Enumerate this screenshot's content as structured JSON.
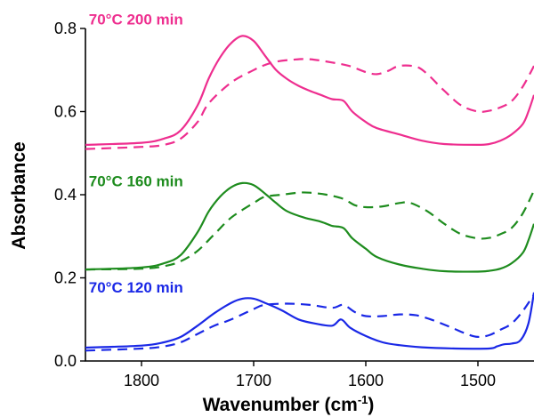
{
  "chart_data": {
    "type": "line",
    "title": "",
    "xlabel": "Wavenumber (cm",
    "xlabel_sup": "-1",
    "xlabel_close": ")",
    "ylabel": "Absorbance",
    "xlim": [
      1850,
      1450
    ],
    "ylim": [
      0.0,
      0.8
    ],
    "x_reversed": true,
    "grid": false,
    "legend": "none",
    "xticks": [
      {
        "value": 1800,
        "label": "1800"
      },
      {
        "value": 1700,
        "label": "1700"
      },
      {
        "value": 1600,
        "label": "1600"
      },
      {
        "value": 1500,
        "label": "1500"
      }
    ],
    "yticks": [
      {
        "value": 0.0,
        "label": "0.0"
      },
      {
        "value": 0.2,
        "label": "0.2"
      },
      {
        "value": 0.4,
        "label": "0.4"
      },
      {
        "value": 0.6,
        "label": "0.6"
      },
      {
        "value": 0.8,
        "label": "0.8"
      }
    ],
    "labels": [
      {
        "text": "70°C 200 min",
        "color": "#ee2e8f",
        "x": 1847,
        "y": 0.81
      },
      {
        "text": "70°C 160 min",
        "color": "#1e8c1e",
        "x": 1847,
        "y": 0.42
      },
      {
        "text": "70°C 120 min",
        "color": "#1a28e6",
        "x": 1847,
        "y": 0.165
      }
    ],
    "series": [
      {
        "color": "#ee2e8f",
        "style": "solid",
        "points": [
          [
            1850,
            0.52
          ],
          [
            1800,
            0.525
          ],
          [
            1780,
            0.535
          ],
          [
            1765,
            0.555
          ],
          [
            1750,
            0.615
          ],
          [
            1740,
            0.68
          ],
          [
            1730,
            0.73
          ],
          [
            1720,
            0.765
          ],
          [
            1710,
            0.782
          ],
          [
            1700,
            0.77
          ],
          [
            1690,
            0.735
          ],
          [
            1680,
            0.7
          ],
          [
            1670,
            0.678
          ],
          [
            1660,
            0.662
          ],
          [
            1650,
            0.65
          ],
          [
            1640,
            0.64
          ],
          [
            1630,
            0.63
          ],
          [
            1620,
            0.626
          ],
          [
            1612,
            0.6
          ],
          [
            1600,
            0.575
          ],
          [
            1590,
            0.56
          ],
          [
            1570,
            0.545
          ],
          [
            1550,
            0.53
          ],
          [
            1530,
            0.522
          ],
          [
            1500,
            0.52
          ],
          [
            1490,
            0.522
          ],
          [
            1480,
            0.53
          ],
          [
            1470,
            0.545
          ],
          [
            1460,
            0.57
          ],
          [
            1455,
            0.6
          ],
          [
            1450,
            0.64
          ]
        ]
      },
      {
        "color": "#ee2e8f",
        "style": "dashed",
        "points": [
          [
            1850,
            0.51
          ],
          [
            1800,
            0.515
          ],
          [
            1780,
            0.52
          ],
          [
            1765,
            0.535
          ],
          [
            1750,
            0.575
          ],
          [
            1740,
            0.62
          ],
          [
            1720,
            0.67
          ],
          [
            1700,
            0.7
          ],
          [
            1690,
            0.712
          ],
          [
            1680,
            0.72
          ],
          [
            1665,
            0.725
          ],
          [
            1650,
            0.726
          ],
          [
            1630,
            0.718
          ],
          [
            1615,
            0.71
          ],
          [
            1600,
            0.695
          ],
          [
            1590,
            0.69
          ],
          [
            1580,
            0.698
          ],
          [
            1570,
            0.71
          ],
          [
            1555,
            0.708
          ],
          [
            1545,
            0.69
          ],
          [
            1530,
            0.65
          ],
          [
            1515,
            0.615
          ],
          [
            1500,
            0.6
          ],
          [
            1490,
            0.602
          ],
          [
            1480,
            0.61
          ],
          [
            1470,
            0.625
          ],
          [
            1460,
            0.66
          ],
          [
            1450,
            0.71
          ]
        ]
      },
      {
        "color": "#1e8c1e",
        "style": "solid",
        "points": [
          [
            1850,
            0.22
          ],
          [
            1800,
            0.225
          ],
          [
            1780,
            0.235
          ],
          [
            1765,
            0.255
          ],
          [
            1750,
            0.31
          ],
          [
            1740,
            0.36
          ],
          [
            1730,
            0.395
          ],
          [
            1720,
            0.418
          ],
          [
            1710,
            0.428
          ],
          [
            1700,
            0.423
          ],
          [
            1690,
            0.403
          ],
          [
            1680,
            0.38
          ],
          [
            1670,
            0.36
          ],
          [
            1655,
            0.345
          ],
          [
            1640,
            0.335
          ],
          [
            1630,
            0.325
          ],
          [
            1620,
            0.32
          ],
          [
            1612,
            0.295
          ],
          [
            1600,
            0.27
          ],
          [
            1590,
            0.25
          ],
          [
            1570,
            0.232
          ],
          [
            1550,
            0.222
          ],
          [
            1530,
            0.216
          ],
          [
            1500,
            0.215
          ],
          [
            1490,
            0.217
          ],
          [
            1480,
            0.222
          ],
          [
            1470,
            0.235
          ],
          [
            1460,
            0.26
          ],
          [
            1455,
            0.29
          ],
          [
            1450,
            0.33
          ]
        ]
      },
      {
        "color": "#1e8c1e",
        "style": "dashed",
        "points": [
          [
            1850,
            0.22
          ],
          [
            1800,
            0.222
          ],
          [
            1780,
            0.228
          ],
          [
            1765,
            0.24
          ],
          [
            1750,
            0.265
          ],
          [
            1735,
            0.305
          ],
          [
            1720,
            0.345
          ],
          [
            1700,
            0.38
          ],
          [
            1690,
            0.395
          ],
          [
            1675,
            0.4
          ],
          [
            1660,
            0.405
          ],
          [
            1650,
            0.405
          ],
          [
            1635,
            0.4
          ],
          [
            1620,
            0.39
          ],
          [
            1610,
            0.375
          ],
          [
            1600,
            0.37
          ],
          [
            1585,
            0.372
          ],
          [
            1570,
            0.38
          ],
          [
            1560,
            0.38
          ],
          [
            1545,
            0.36
          ],
          [
            1530,
            0.33
          ],
          [
            1515,
            0.305
          ],
          [
            1500,
            0.295
          ],
          [
            1490,
            0.296
          ],
          [
            1480,
            0.305
          ],
          [
            1470,
            0.32
          ],
          [
            1460,
            0.355
          ],
          [
            1450,
            0.41
          ]
        ]
      },
      {
        "color": "#1a28e6",
        "style": "solid",
        "points": [
          [
            1850,
            0.032
          ],
          [
            1800,
            0.037
          ],
          [
            1780,
            0.045
          ],
          [
            1765,
            0.058
          ],
          [
            1750,
            0.085
          ],
          [
            1735,
            0.115
          ],
          [
            1720,
            0.14
          ],
          [
            1710,
            0.15
          ],
          [
            1700,
            0.15
          ],
          [
            1690,
            0.14
          ],
          [
            1675,
            0.122
          ],
          [
            1660,
            0.1
          ],
          [
            1645,
            0.09
          ],
          [
            1630,
            0.085
          ],
          [
            1622,
            0.1
          ],
          [
            1614,
            0.08
          ],
          [
            1600,
            0.06
          ],
          [
            1585,
            0.045
          ],
          [
            1570,
            0.038
          ],
          [
            1550,
            0.033
          ],
          [
            1520,
            0.03
          ],
          [
            1490,
            0.03
          ],
          [
            1483,
            0.035
          ],
          [
            1477,
            0.04
          ],
          [
            1470,
            0.042
          ],
          [
            1462,
            0.05
          ],
          [
            1455,
            0.09
          ],
          [
            1450,
            0.165
          ]
        ]
      },
      {
        "color": "#1a28e6",
        "style": "dashed",
        "points": [
          [
            1850,
            0.025
          ],
          [
            1800,
            0.03
          ],
          [
            1780,
            0.035
          ],
          [
            1765,
            0.045
          ],
          [
            1750,
            0.065
          ],
          [
            1735,
            0.085
          ],
          [
            1720,
            0.1
          ],
          [
            1700,
            0.125
          ],
          [
            1690,
            0.135
          ],
          [
            1670,
            0.138
          ],
          [
            1650,
            0.135
          ],
          [
            1630,
            0.128
          ],
          [
            1620,
            0.135
          ],
          [
            1610,
            0.118
          ],
          [
            1600,
            0.108
          ],
          [
            1585,
            0.108
          ],
          [
            1570,
            0.112
          ],
          [
            1555,
            0.11
          ],
          [
            1540,
            0.098
          ],
          [
            1525,
            0.082
          ],
          [
            1510,
            0.065
          ],
          [
            1500,
            0.058
          ],
          [
            1490,
            0.062
          ],
          [
            1480,
            0.075
          ],
          [
            1470,
            0.09
          ],
          [
            1460,
            0.12
          ],
          [
            1450,
            0.16
          ]
        ]
      }
    ]
  }
}
